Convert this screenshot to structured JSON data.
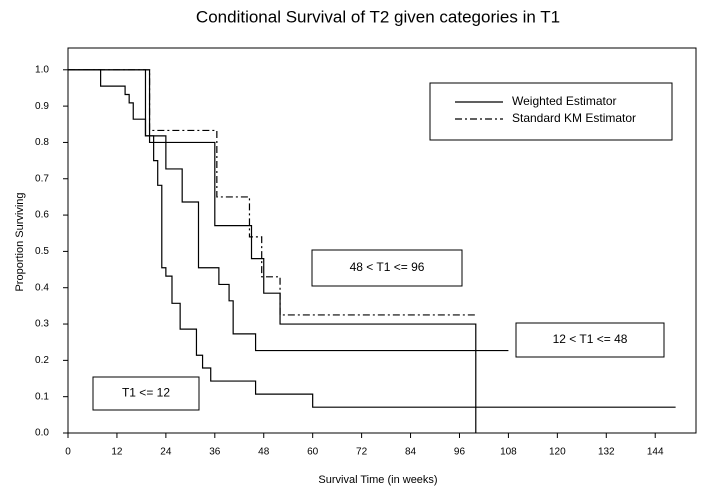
{
  "chart_data": {
    "type": "step",
    "title": "Conditional Survival of T2 given categories in T1",
    "xlabel": "Survival Time (in weeks)",
    "ylabel": "Proportion Surviving",
    "xlim": [
      0,
      154
    ],
    "ylim": [
      0,
      1.06
    ],
    "xticks": [
      0,
      12,
      24,
      36,
      48,
      60,
      72,
      84,
      96,
      108,
      120,
      132,
      144
    ],
    "yticks": [
      {
        "value": 0,
        "label": "0.0"
      },
      0.1,
      0.2,
      0.3,
      0.4,
      0.5,
      0.6,
      0.7,
      0.8,
      0.9,
      {
        "value": 1,
        "label": "1.0"
      }
    ],
    "series": [
      {
        "name": "Weighted Estimator",
        "style": "solid",
        "color": "#000000",
        "x": [
          0,
          19,
          24,
          28,
          32,
          37,
          39.5,
          40.5,
          46,
          108
        ],
        "values": [
          1,
          0.818,
          0.727,
          0.636,
          0.455,
          0.409,
          0.364,
          0.273,
          0.227,
          0.227
        ]
      },
      {
        "name": "Standard KM Estimator",
        "style": "dashdot",
        "color": "#000000",
        "x": [
          0,
          20,
          36.5,
          44.5,
          47.5,
          52,
          100
        ],
        "values": [
          1,
          0.833,
          0.65,
          0.54,
          0.43,
          0.325,
          0.325
        ]
      },
      {
        "name": "Weighted Estimator",
        "style": "solid",
        "color": "#000000",
        "x": [
          0,
          20,
          36,
          45,
          48,
          52,
          100
        ],
        "values": [
          1,
          0.8,
          0.571,
          0.48,
          0.385,
          0.3,
          0
        ]
      },
      {
        "name": "Weighted Estimator",
        "style": "solid",
        "color": "#000000",
        "x": [
          0,
          8,
          14,
          15,
          16,
          19,
          21,
          22,
          23,
          24,
          25.5,
          27.5,
          31.5,
          33,
          35,
          46,
          60,
          149
        ],
        "values": [
          1,
          0.955,
          0.932,
          0.909,
          0.864,
          0.818,
          0.75,
          0.682,
          0.455,
          0.432,
          0.357,
          0.286,
          0.214,
          0.179,
          0.143,
          0.107,
          0.071,
          0.071
        ]
      }
    ],
    "annotations": [
      "48 < T1 <= 96",
      "12 < T1 <= 48",
      "T1 <= 12"
    ]
  }
}
